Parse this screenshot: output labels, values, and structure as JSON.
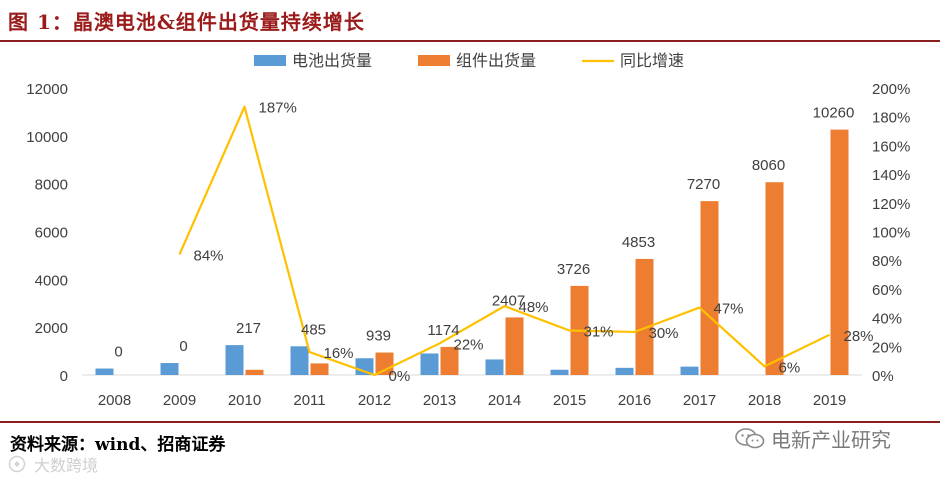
{
  "header": {
    "title": "图 1：晶澳电池&组件出货量持续增长"
  },
  "footer": {
    "source": "资料来源：wind、招商证券",
    "watermark_right": "电新产业研究",
    "watermark_left": "大数跨境"
  },
  "colors": {
    "battery": "#5b9bd5",
    "module": "#ed7d31",
    "growth": "#ffc000",
    "title": "#9b1b1b"
  },
  "chart_data": {
    "type": "bar",
    "categories": [
      "2008",
      "2009",
      "2010",
      "2011",
      "2012",
      "2013",
      "2014",
      "2015",
      "2016",
      "2017",
      "2018",
      "2019"
    ],
    "series": [
      {
        "name": "电池出货量",
        "type": "bar",
        "axis": "left",
        "values": [
          270,
          500,
          1250,
          1200,
          700,
          900,
          650,
          220,
          300,
          350,
          0,
          0
        ]
      },
      {
        "name": "组件出货量",
        "type": "bar",
        "axis": "left",
        "values": [
          0,
          0,
          217,
          485,
          939,
          1174,
          2407,
          3726,
          4853,
          7270,
          8060,
          10260
        ]
      },
      {
        "name": "同比增速",
        "type": "line",
        "axis": "right",
        "values": [
          null,
          84,
          187,
          16,
          0,
          22,
          48,
          31,
          30,
          47,
          6,
          28
        ]
      }
    ],
    "data_labels": {
      "module": [
        "0",
        "0",
        "217",
        "485",
        "939",
        "1174",
        "2407",
        "3726",
        "4853",
        "7270",
        "8060",
        "10260"
      ],
      "growth": [
        null,
        "84%",
        "187%",
        "16%",
        "0%",
        "22%",
        "48%",
        "31%",
        "30%",
        "47%",
        "6%",
        "28%"
      ]
    },
    "y_left": {
      "min": 0,
      "max": 12000,
      "ticks": [
        "0",
        "2000",
        "4000",
        "6000",
        "8000",
        "10000",
        "12000"
      ]
    },
    "y_right": {
      "min": 0,
      "max": 200,
      "ticks": [
        "0%",
        "20%",
        "40%",
        "60%",
        "80%",
        "100%",
        "120%",
        "140%",
        "160%",
        "180%",
        "200%"
      ]
    },
    "legend_position": "top",
    "grid": false
  }
}
